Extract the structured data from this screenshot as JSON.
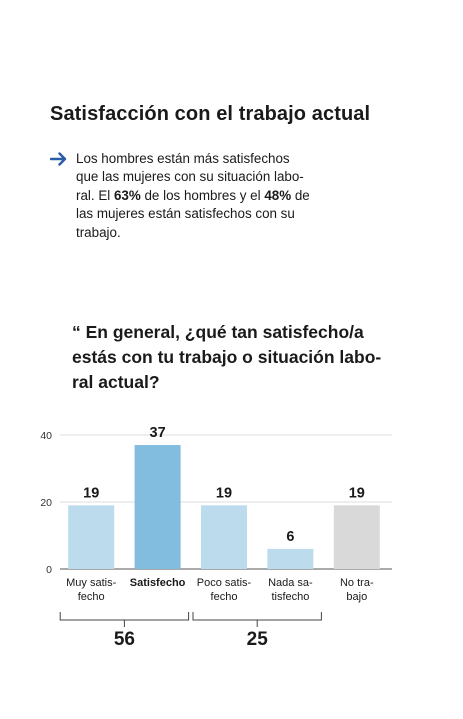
{
  "title": "Satisfacción con el trabajo actual",
  "intro": {
    "icon": "arrow-right-icon",
    "accent_color": "#2a5da8",
    "line1": "Los hombres están más satisfechos",
    "line2": "que las mujeres con su situación labo-",
    "line3_a": "ral. El ",
    "line3_b": "63%",
    "line3_c": " de los hombres y el ",
    "line3_d": "48%",
    "line3_e": " de",
    "line4": "las mujeres están satisfechos con su",
    "line5": "trabajo."
  },
  "question": {
    "line1": "“ En general, ¿qué tan satisfecho/a",
    "line2": "estás con tu trabajo o situación labo-",
    "line3": "ral actual?"
  },
  "chart_data": {
    "type": "bar",
    "ylim": [
      0,
      40
    ],
    "yticks": [
      "0",
      "20",
      "40"
    ],
    "grid": true,
    "categories": [
      {
        "lines": [
          "Muy satis-",
          "fecho"
        ],
        "value": 19,
        "color": "#bcdcee",
        "bold": false
      },
      {
        "lines": [
          "Satisfecho"
        ],
        "value": 37,
        "color": "#82bcdf",
        "bold": true
      },
      {
        "lines": [
          "Poco satis-",
          "fecho"
        ],
        "value": 19,
        "color": "#bcdcee",
        "bold": false
      },
      {
        "lines": [
          "Nada sa-",
          "tisfecho"
        ],
        "value": 6,
        "color": "#bcdcee",
        "bold": false
      },
      {
        "lines": [
          "No tra-",
          "bajo"
        ],
        "value": 19,
        "color": "#d9d9d9",
        "bold": false
      }
    ],
    "groups": [
      {
        "from": 0,
        "to": 1,
        "total": "56"
      },
      {
        "from": 2,
        "to": 3,
        "total": "25"
      }
    ]
  }
}
